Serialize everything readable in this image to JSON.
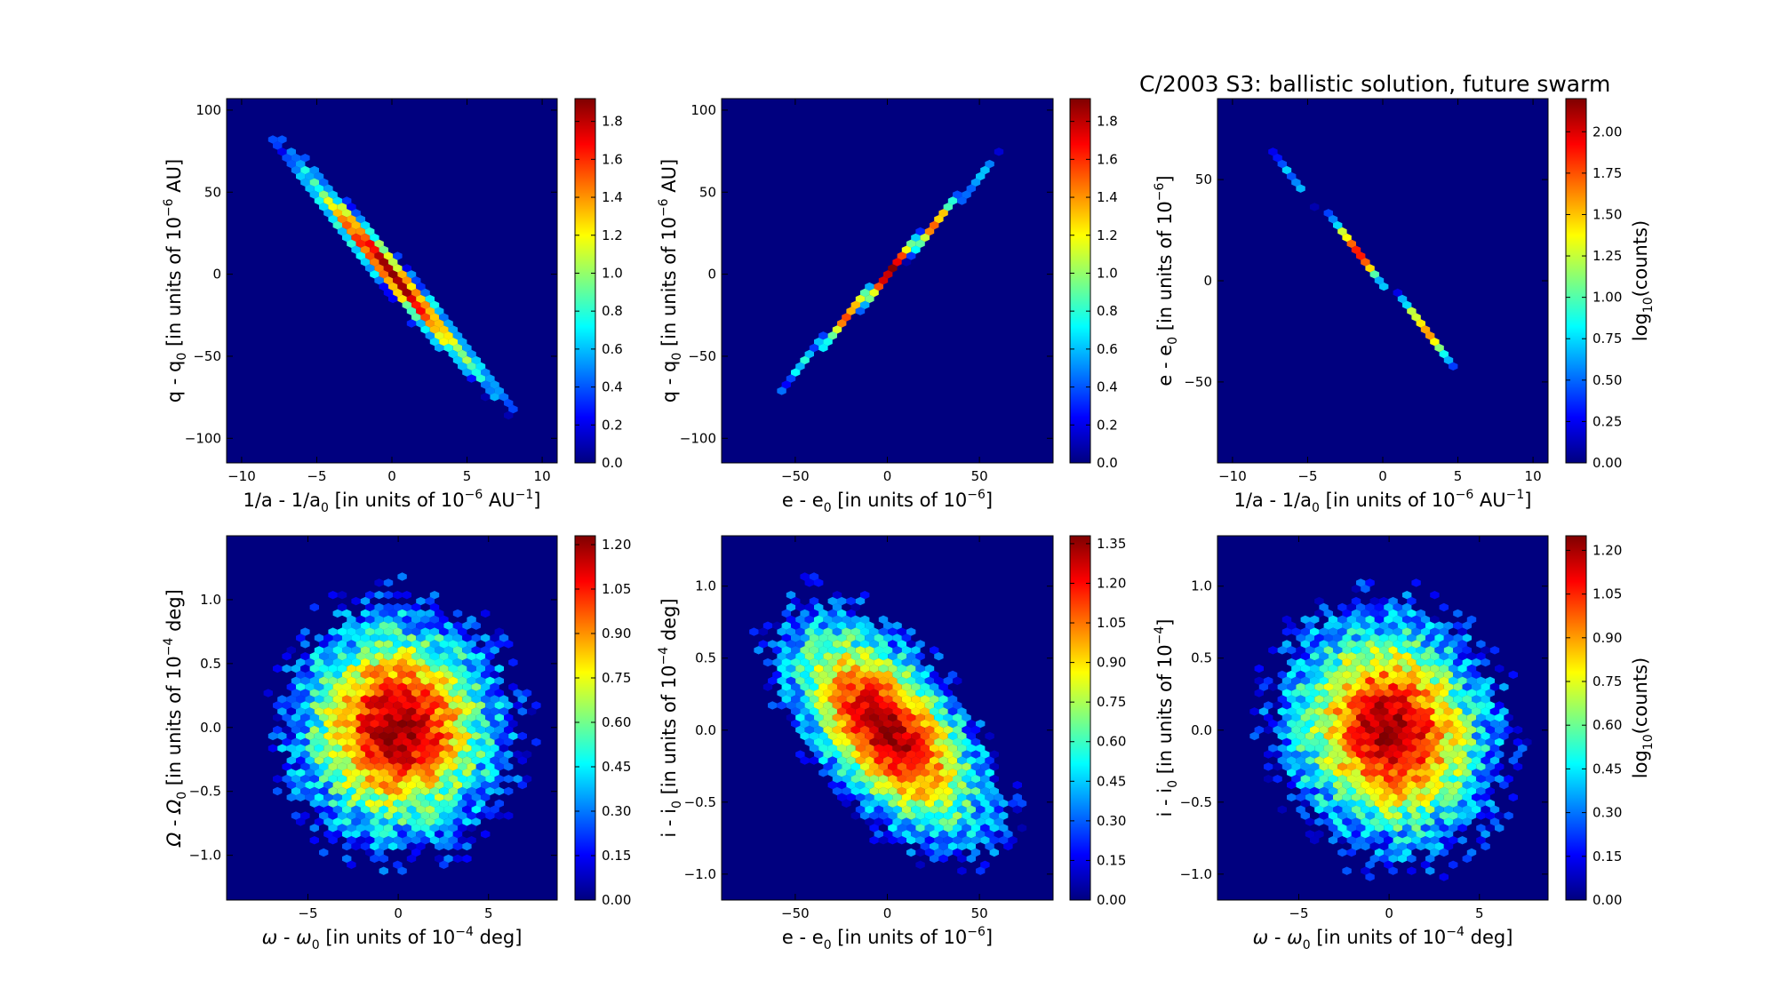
{
  "figure": {
    "title": "C/2003 S3:  ballistic solution, future swarm",
    "colormap": [
      "#00007f",
      "#0000ff",
      "#007fff",
      "#00ffff",
      "#7fff7f",
      "#ffff00",
      "#ff7f00",
      "#ff0000",
      "#7f0000"
    ],
    "background_color": "#00007f"
  },
  "chart_data": [
    {
      "type": "heatmap",
      "subtype": "hexbin",
      "xlabel": {
        "base": "1/a - 1/a",
        "sub": "0",
        "rest": " [in units of 10",
        "sup": "−6",
        "rest2": " AU",
        "sup2": "−1",
        "end": "]"
      },
      "ylabel": {
        "base": "q - q",
        "sub": "0",
        "rest": " [in units of 10",
        "sup": "−6",
        "end": " AU]"
      },
      "xlim": [
        -11,
        11
      ],
      "ylim": [
        -115,
        107
      ],
      "xticks": [
        -10,
        -5,
        0,
        5,
        10
      ],
      "yticks": [
        -100,
        -50,
        0,
        50,
        100
      ],
      "xtick_labels": [
        "−10",
        "−5",
        "0",
        "5",
        "10"
      ],
      "ytick_labels": [
        "−100",
        "−50",
        "0",
        "50",
        "100"
      ],
      "distribution": {
        "center": [
          0,
          0
        ],
        "slope": -10.4,
        "sigma_along": 3.0,
        "sigma_perp": 0.55,
        "peak": 1.9
      },
      "colorbar": {
        "min": 0,
        "max": 1.92,
        "ticks": [
          0.0,
          0.2,
          0.4,
          0.6,
          0.8,
          1.0,
          1.2,
          1.4,
          1.6,
          1.8
        ],
        "tick_labels": [
          "0.0",
          "0.2",
          "0.4",
          "0.6",
          "0.8",
          "1.0",
          "1.2",
          "1.4",
          "1.6",
          "1.8"
        ],
        "label": ""
      }
    },
    {
      "type": "heatmap",
      "subtype": "hexbin",
      "xlabel": {
        "base": "e - e",
        "sub": "0",
        "rest": " [in units of 10",
        "sup": "−6",
        "end": "]"
      },
      "ylabel": {
        "base": "q - q",
        "sub": "0",
        "rest": " [in units of 10",
        "sup": "−6",
        "end": " AU]"
      },
      "xlim": [
        -90,
        90
      ],
      "ylim": [
        -115,
        107
      ],
      "xticks": [
        -50,
        0,
        50
      ],
      "yticks": [
        -100,
        -50,
        0,
        50,
        100
      ],
      "xtick_labels": [
        "−50",
        "0",
        "50"
      ],
      "ytick_labels": [
        "−100",
        "−50",
        "0",
        "50",
        "100"
      ],
      "distribution": {
        "center": [
          0,
          0
        ],
        "slope": 1.2,
        "sigma_along": 25,
        "sigma_perp": 1.6,
        "peak": 1.9
      },
      "colorbar": {
        "min": 0,
        "max": 1.92,
        "ticks": [
          0.0,
          0.2,
          0.4,
          0.6,
          0.8,
          1.0,
          1.2,
          1.4,
          1.6,
          1.8
        ],
        "tick_labels": [
          "0.0",
          "0.2",
          "0.4",
          "0.6",
          "0.8",
          "1.0",
          "1.2",
          "1.4",
          "1.6",
          "1.8"
        ],
        "label": ""
      }
    },
    {
      "type": "heatmap",
      "subtype": "hexbin",
      "xlabel": {
        "base": "1/a - 1/a",
        "sub": "0",
        "rest": " [in units of 10",
        "sup": "−6",
        "rest2": " AU",
        "sup2": "−1",
        "end": "]"
      },
      "ylabel": {
        "base": "e - e",
        "sub": "0",
        "rest": " [in units of 10",
        "sup": "−6",
        "end": "]"
      },
      "xlim": [
        -11,
        11
      ],
      "ylim": [
        -90,
        90
      ],
      "xticks": [
        -10,
        -5,
        0,
        5,
        10
      ],
      "yticks": [
        -50,
        0,
        50
      ],
      "xtick_labels": [
        "−10",
        "−5",
        "0",
        "5",
        "10"
      ],
      "ytick_labels": [
        "−50",
        "0",
        "50"
      ],
      "distribution": {
        "center": [
          0,
          0
        ],
        "slope": -8.6,
        "sigma_along": 3.0,
        "sigma_perp": 0.12,
        "peak": 2.1
      },
      "colorbar": {
        "min": 0,
        "max": 2.2,
        "ticks": [
          0.0,
          0.25,
          0.5,
          0.75,
          1.0,
          1.25,
          1.5,
          1.75,
          2.0
        ],
        "tick_labels": [
          "0.00",
          "0.25",
          "0.50",
          "0.75",
          "1.00",
          "1.25",
          "1.50",
          "1.75",
          "2.00"
        ],
        "label": {
          "base": "log",
          "sub": "10",
          "end": "(counts)"
        }
      }
    },
    {
      "type": "heatmap",
      "subtype": "hexbin",
      "xlabel": {
        "greek": "ω",
        "base": " - ",
        "greek2": "ω",
        "sub": "0",
        "rest": " [in units of 10",
        "sup": "−4",
        "end": "  deg]"
      },
      "ylabel": {
        "greek": "Ω",
        "base": " - ",
        "greek2": "Ω",
        "sub": "0",
        "rest": " [in units of 10",
        "sup": "−4",
        "end": "  deg]"
      },
      "xlim": [
        -9.5,
        8.8
      ],
      "ylim": [
        -1.35,
        1.5
      ],
      "xticks": [
        -5,
        0,
        5
      ],
      "yticks": [
        -1.0,
        -0.5,
        0.0,
        0.5,
        1.0
      ],
      "xtick_labels": [
        "−5",
        "0",
        "5"
      ],
      "ytick_labels": [
        "−1.0",
        "−0.5",
        "0.0",
        "0.5",
        "1.0"
      ],
      "distribution": {
        "center": [
          0,
          0
        ],
        "sigma_x": 2.6,
        "sigma_y": 0.4,
        "rho": 0.0,
        "peak": 1.2
      },
      "colorbar": {
        "min": 0,
        "max": 1.23,
        "ticks": [
          0.0,
          0.15,
          0.3,
          0.45,
          0.6,
          0.75,
          0.9,
          1.05,
          1.2
        ],
        "tick_labels": [
          "0.00",
          "0.15",
          "0.30",
          "0.45",
          "0.60",
          "0.75",
          "0.90",
          "1.05",
          "1.20"
        ],
        "label": ""
      }
    },
    {
      "type": "heatmap",
      "subtype": "hexbin",
      "xlabel": {
        "base": "e - e",
        "sub": "0",
        "rest": " [in units of 10",
        "sup": "−6",
        "end": "]"
      },
      "ylabel": {
        "base": "i - i",
        "sub": "0",
        "rest": " [in units of 10",
        "sup": "−4",
        "end": "  deg]"
      },
      "xlim": [
        -90,
        90
      ],
      "ylim": [
        -1.18,
        1.35
      ],
      "xticks": [
        -50,
        0,
        50
      ],
      "yticks": [
        -1.0,
        -0.5,
        0.0,
        0.5,
        1.0
      ],
      "xtick_labels": [
        "−50",
        "0",
        "50"
      ],
      "ytick_labels": [
        "−1.0",
        "−0.5",
        "0.0",
        "0.5",
        "1.0"
      ],
      "distribution": {
        "center": [
          0,
          0
        ],
        "sigma_x": 25,
        "sigma_y": 0.36,
        "rho": -0.6,
        "peak": 1.35
      },
      "colorbar": {
        "min": 0,
        "max": 1.38,
        "ticks": [
          0.0,
          0.15,
          0.3,
          0.45,
          0.6,
          0.75,
          0.9,
          1.05,
          1.2,
          1.35
        ],
        "tick_labels": [
          "0.00",
          "0.15",
          "0.30",
          "0.45",
          "0.60",
          "0.75",
          "0.90",
          "1.05",
          "1.20",
          "1.35"
        ],
        "label": ""
      }
    },
    {
      "type": "heatmap",
      "subtype": "hexbin",
      "xlabel": {
        "greek": "ω",
        "base": " - ",
        "greek2": "ω",
        "sub": "0",
        "rest": " [in units of 10",
        "sup": "−4",
        "end": "  deg]"
      },
      "ylabel": {
        "base": "i - i",
        "sub": "0",
        "rest": " [in units of 10",
        "sup": "−4",
        "end": "]"
      },
      "xlim": [
        -9.5,
        8.8
      ],
      "ylim": [
        -1.18,
        1.35
      ],
      "xticks": [
        -5,
        0,
        5
      ],
      "yticks": [
        -1.0,
        -0.5,
        0.0,
        0.5,
        1.0
      ],
      "xtick_labels": [
        "−5",
        "0",
        "5"
      ],
      "ytick_labels": [
        "−1.0",
        "−0.5",
        "0.0",
        "0.5",
        "1.0"
      ],
      "distribution": {
        "center": [
          0,
          0
        ],
        "sigma_x": 2.6,
        "sigma_y": 0.36,
        "rho": -0.1,
        "peak": 1.22
      },
      "colorbar": {
        "min": 0,
        "max": 1.25,
        "ticks": [
          0.0,
          0.15,
          0.3,
          0.45,
          0.6,
          0.75,
          0.9,
          1.05,
          1.2
        ],
        "tick_labels": [
          "0.00",
          "0.15",
          "0.30",
          "0.45",
          "0.60",
          "0.75",
          "0.90",
          "1.05",
          "1.20"
        ],
        "label": {
          "base": "log",
          "sub": "10",
          "end": "(counts)"
        }
      }
    }
  ]
}
